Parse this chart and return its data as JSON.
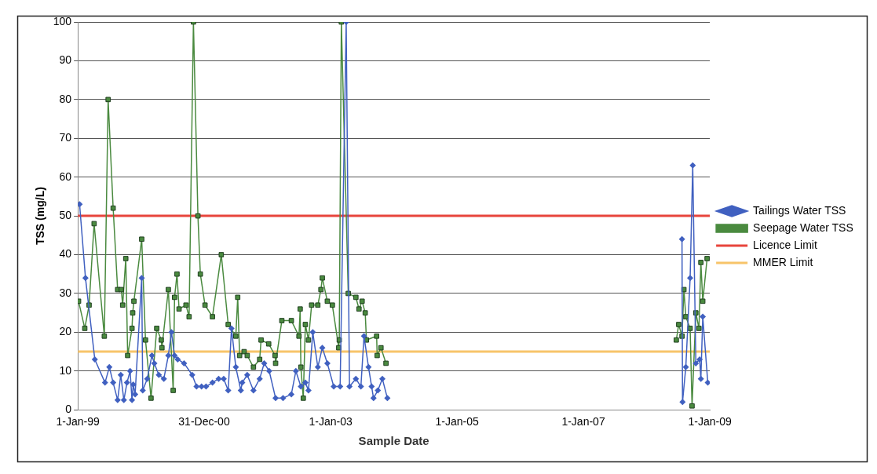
{
  "chart_data": {
    "type": "line",
    "xlabel": "Sample Date",
    "ylabel": "TSS (mg/L)",
    "xlim": [
      "1999-01-01",
      "2009-01-01"
    ],
    "xticks": [
      {
        "value": "1999-01-01",
        "label": "1-Jan-99"
      },
      {
        "value": "2000-12-31",
        "label": "31-Dec-00"
      },
      {
        "value": "2003-01-01",
        "label": "1-Jan-03"
      },
      {
        "value": "2005-01-01",
        "label": "1-Jan-05"
      },
      {
        "value": "2007-01-01",
        "label": "1-Jan-07"
      },
      {
        "value": "2009-01-01",
        "label": "1-Jan-09"
      }
    ],
    "ylim": [
      0,
      100
    ],
    "yticks": [
      0,
      10,
      20,
      30,
      40,
      50,
      60,
      70,
      80,
      90,
      100
    ],
    "grid": "y",
    "legend": "right",
    "line_style": "solid",
    "series": [
      {
        "name": "Tailings Water TSS",
        "color": "#4060c0",
        "marker": "diamond",
        "x": [
          "1999-01-11",
          "1999-02-14",
          "1999-04-09",
          "1999-06-07",
          "1999-07-02",
          "1999-07-24",
          "1999-08-19",
          "1999-09-06",
          "1999-09-24",
          "1999-10-12",
          "1999-10-30",
          "1999-11-10",
          "1999-11-17",
          "1999-11-28",
          "2000-01-05",
          "2000-01-11",
          "2000-02-06",
          "2000-03-04",
          "2000-03-18",
          "2000-04-13",
          "2000-05-12",
          "2000-06-07",
          "2000-06-25",
          "2000-07-13",
          "2000-07-31",
          "2000-09-06",
          "2000-10-23",
          "2000-11-17",
          "2000-12-16",
          "2001-01-11",
          "2001-02-17",
          "2001-03-25",
          "2001-04-23",
          "2001-05-19",
          "2001-06-07",
          "2001-07-02",
          "2001-07-31",
          "2001-08-08",
          "2001-09-06",
          "2001-10-12",
          "2001-11-17",
          "2001-12-13",
          "2002-01-11",
          "2002-02-17",
          "2002-04-01",
          "2002-05-19",
          "2002-06-14",
          "2002-07-13",
          "2002-08-08",
          "2002-08-26",
          "2002-09-20",
          "2002-10-19",
          "2002-11-14",
          "2002-12-13",
          "2003-01-19",
          "2003-02-25",
          "2003-04-01",
          "2003-04-20",
          "2003-05-27",
          "2003-06-25",
          "2003-07-13",
          "2003-08-08",
          "2003-08-26",
          "2003-09-06",
          "2003-10-01",
          "2003-10-27",
          "2003-11-25",
          "2006-01-01",
          "2008-07-24",
          "2008-07-27",
          "2008-08-15",
          "2008-09-09",
          "2008-09-24",
          "2008-10-12",
          "2008-11-03",
          "2008-11-10",
          "2008-11-21",
          "2008-12-20"
        ],
        "values": [
          53,
          34,
          13,
          7,
          11,
          7,
          2.5,
          9,
          2.5,
          7,
          10,
          2.5,
          6.5,
          4,
          34,
          5,
          8,
          14,
          12,
          9,
          8,
          14,
          20,
          14,
          13,
          12,
          9,
          6,
          6,
          6,
          7,
          8,
          8,
          5,
          21,
          11,
          5,
          7,
          9,
          5,
          8,
          12,
          10,
          3,
          3,
          4,
          10,
          6,
          7,
          5,
          20,
          11,
          16,
          12,
          6,
          6,
          100,
          6,
          8,
          6,
          19,
          11,
          6,
          3,
          5,
          8,
          3,
          null,
          44,
          2,
          11,
          34,
          63,
          12,
          13,
          8,
          24,
          7
        ]
      },
      {
        "name": "Seepage Water TSS",
        "color": "#4a8a3f",
        "marker": "square",
        "x": [
          "1999-01-05",
          "1999-02-10",
          "1999-03-07",
          "1999-04-05",
          "1999-06-03",
          "1999-06-25",
          "1999-07-24",
          "1999-08-19",
          "1999-09-09",
          "1999-09-17",
          "1999-10-05",
          "1999-10-16",
          "1999-11-10",
          "1999-11-14",
          "1999-11-21",
          "2000-01-05",
          "2000-01-27",
          "2000-02-28",
          "2000-04-01",
          "2000-04-27",
          "2000-05-01",
          "2000-06-07",
          "2000-07-05",
          "2000-07-13",
          "2000-07-27",
          "2000-08-08",
          "2000-09-17",
          "2000-10-05",
          "2000-10-30",
          "2000-11-25",
          "2000-12-09",
          "2001-01-05",
          "2001-02-17",
          "2001-04-09",
          "2001-05-19",
          "2001-07-02",
          "2001-07-13",
          "2001-07-24",
          "2001-08-19",
          "2001-09-06",
          "2001-10-12",
          "2001-11-17",
          "2001-11-25",
          "2002-01-08",
          "2002-02-14",
          "2002-02-17",
          "2002-03-25",
          "2002-05-19",
          "2002-07-02",
          "2002-07-09",
          "2002-07-13",
          "2002-07-27",
          "2002-08-08",
          "2002-08-26",
          "2002-09-13",
          "2002-10-19",
          "2002-11-06",
          "2002-11-14",
          "2002-12-13",
          "2003-01-11",
          "2003-02-17",
          "2003-02-20",
          "2003-03-04",
          "2003-04-13",
          "2003-05-27",
          "2003-06-14",
          "2003-07-02",
          "2003-07-20",
          "2003-07-27",
          "2003-09-24",
          "2003-09-27",
          "2003-10-19",
          "2003-11-17",
          "2006-01-01",
          "2008-06-21",
          "2008-07-05",
          "2008-07-24",
          "2008-08-04",
          "2008-08-15",
          "2008-09-09",
          "2008-09-20",
          "2008-10-12",
          "2008-10-30",
          "2008-11-10",
          "2008-11-21",
          "2008-12-16"
        ],
        "values": [
          28,
          21,
          27,
          48,
          19,
          80,
          52,
          31,
          31,
          27,
          39,
          14,
          21,
          25,
          28,
          44,
          18,
          3,
          21,
          18,
          16,
          31,
          5,
          29,
          35,
          26,
          27,
          24,
          100,
          50,
          35,
          27,
          24,
          40,
          22,
          19,
          29,
          14,
          15,
          14,
          11,
          13,
          18,
          17,
          14,
          12,
          23,
          23,
          19,
          26,
          11,
          3,
          22,
          18,
          27,
          27,
          31,
          34,
          28,
          27,
          16,
          18,
          100,
          30,
          29,
          26,
          28,
          25,
          18,
          19,
          14,
          16,
          12,
          null,
          18,
          22,
          19,
          31,
          24,
          21,
          1,
          25,
          21,
          38,
          28,
          39
        ]
      }
    ],
    "ref_lines": [
      {
        "axis": "y",
        "value": 50,
        "label": "Licence Limit",
        "color": "#e8453c"
      },
      {
        "axis": "y",
        "value": 15,
        "label": "MMER Limit",
        "color": "#f7c46a"
      }
    ]
  }
}
